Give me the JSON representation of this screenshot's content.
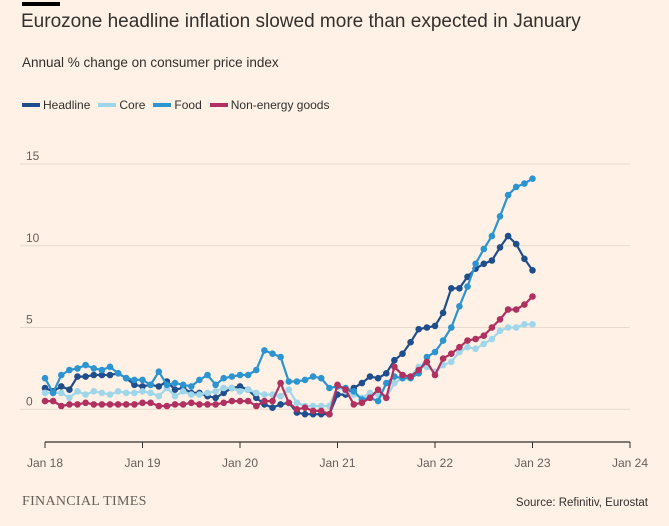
{
  "colors": {
    "background": "#fff1e5",
    "headline": "#1f4e8c",
    "core": "#a0d6ea",
    "food": "#2b94d1",
    "non_energy_goods": "#b03060",
    "grid": "#e6d9ce",
    "axis": "#33302e"
  },
  "footer": {
    "brand": "FINANCIAL TIMES",
    "source": "Source: Refinitiv, Eurostat"
  },
  "chart_data": {
    "type": "line",
    "title": "Eurozone headline inflation slowed more than expected in January",
    "subtitle": "Annual % change on consumer price index",
    "xlabel": "",
    "ylabel": "",
    "xlim": [
      2018.0,
      2024.0
    ],
    "ylim": [
      -2,
      15
    ],
    "y_ticks": [
      0,
      5,
      10,
      15
    ],
    "x_ticks": [
      {
        "value": 2018,
        "label": "Jan 18"
      },
      {
        "value": 2019,
        "label": "Jan 19"
      },
      {
        "value": 2020,
        "label": "Jan 20"
      },
      {
        "value": 2021,
        "label": "Jan 21"
      },
      {
        "value": 2022,
        "label": "Jan 22"
      },
      {
        "value": 2023,
        "label": "Jan 23"
      },
      {
        "value": 2024,
        "label": "Jan 24"
      }
    ],
    "x_start": "Jan 2018",
    "frequency": "monthly",
    "series": [
      {
        "name": "Headline",
        "color": "#1f4e8c",
        "values": [
          1.3,
          1.1,
          1.4,
          1.2,
          2.0,
          2.0,
          2.1,
          2.1,
          2.1,
          2.2,
          1.9,
          1.5,
          1.4,
          1.5,
          1.4,
          1.7,
          1.2,
          1.3,
          1.0,
          1.0,
          0.8,
          0.7,
          1.0,
          1.3,
          1.4,
          1.2,
          0.7,
          0.3,
          0.1,
          0.3,
          0.4,
          -0.2,
          -0.3,
          -0.3,
          -0.3,
          -0.3,
          0.9,
          0.9,
          1.3,
          1.6,
          2.0,
          1.9,
          2.2,
          3.0,
          3.4,
          4.1,
          4.9,
          5.0,
          5.1,
          5.9,
          7.4,
          7.4,
          8.1,
          8.6,
          8.9,
          9.1,
          9.9,
          10.6,
          10.1,
          9.2,
          8.5
        ]
      },
      {
        "name": "Core",
        "color": "#a0d6ea",
        "values": [
          1.0,
          1.0,
          1.0,
          0.7,
          1.1,
          0.9,
          1.1,
          1.0,
          0.9,
          1.1,
          1.0,
          1.0,
          1.1,
          1.0,
          0.8,
          1.3,
          0.8,
          1.1,
          0.9,
          0.9,
          1.0,
          1.1,
          1.3,
          1.3,
          1.1,
          1.2,
          1.0,
          0.9,
          0.9,
          0.8,
          1.2,
          0.4,
          0.2,
          0.2,
          0.2,
          0.2,
          1.4,
          1.1,
          0.9,
          0.7,
          1.0,
          0.9,
          0.7,
          1.6,
          1.9,
          2.0,
          2.6,
          2.6,
          2.3,
          2.7,
          2.9,
          3.5,
          3.8,
          3.7,
          4.0,
          4.3,
          4.8,
          5.0,
          5.0,
          5.2,
          5.2
        ]
      },
      {
        "name": "Food",
        "color": "#2b94d1",
        "values": [
          1.9,
          1.0,
          2.1,
          2.4,
          2.5,
          2.7,
          2.5,
          2.4,
          2.6,
          2.2,
          1.9,
          1.8,
          1.8,
          1.5,
          2.3,
          1.5,
          1.6,
          1.5,
          1.4,
          1.8,
          2.1,
          1.5,
          1.9,
          2.0,
          2.1,
          2.1,
          2.4,
          3.6,
          3.4,
          3.2,
          1.7,
          1.7,
          1.8,
          2.0,
          1.9,
          1.3,
          1.4,
          1.3,
          1.1,
          0.6,
          0.7,
          0.5,
          1.6,
          2.0,
          1.9,
          1.9,
          2.2,
          3.2,
          3.5,
          4.2,
          5.0,
          6.3,
          7.5,
          8.9,
          9.8,
          10.6,
          11.8,
          13.1,
          13.6,
          13.8,
          14.1
        ]
      },
      {
        "name": "Non-energy goods",
        "color": "#b03060",
        "values": [
          0.5,
          0.5,
          0.2,
          0.3,
          0.3,
          0.4,
          0.3,
          0.3,
          0.3,
          0.3,
          0.3,
          0.3,
          0.4,
          0.4,
          0.2,
          0.2,
          0.3,
          0.3,
          0.4,
          0.3,
          0.3,
          0.3,
          0.4,
          0.5,
          0.5,
          0.5,
          0.2,
          0.5,
          0.5,
          1.6,
          0.4,
          0.0,
          0.1,
          -0.1,
          -0.1,
          -0.3,
          1.5,
          1.2,
          0.3,
          0.4,
          0.7,
          1.2,
          0.7,
          2.6,
          2.1,
          2.0,
          2.4,
          2.9,
          2.1,
          3.1,
          3.4,
          3.8,
          4.2,
          4.3,
          4.5,
          5.0,
          5.5,
          6.1,
          6.1,
          6.4,
          6.9
        ]
      }
    ]
  }
}
